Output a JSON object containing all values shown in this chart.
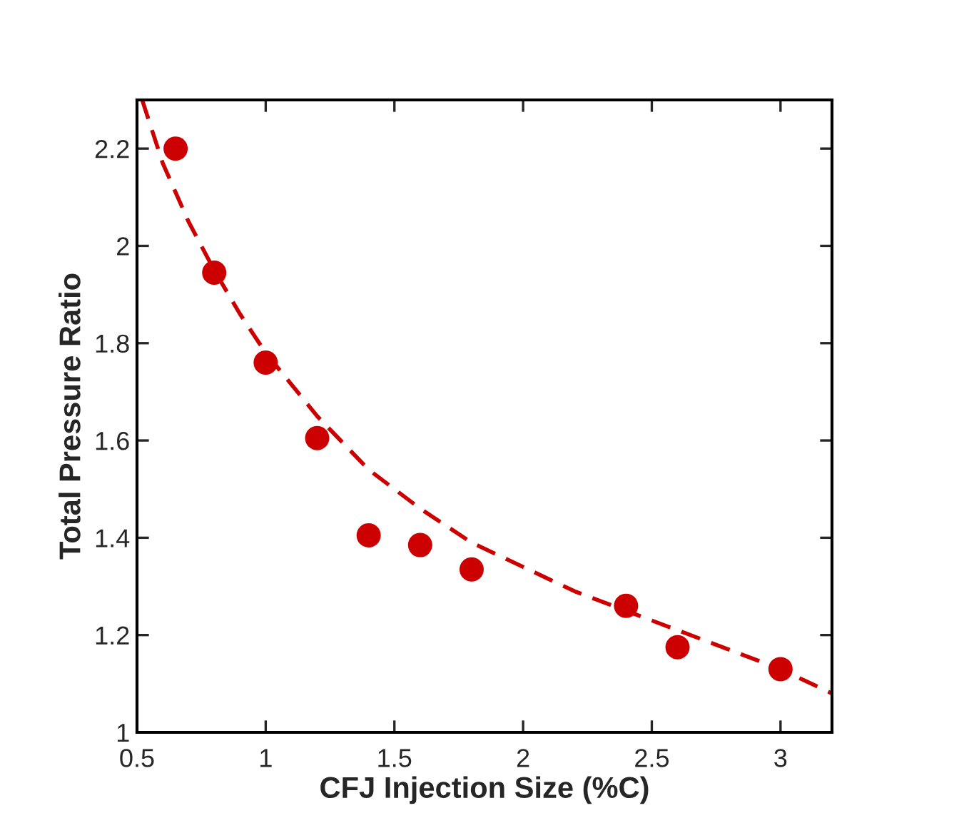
{
  "chart_data": {
    "type": "scatter",
    "xlabel": "CFJ Injection Size (%C)",
    "ylabel": "Total Pressure Ratio",
    "xlim": [
      0.5,
      3.2
    ],
    "ylim": [
      1,
      2.3
    ],
    "xticks": [
      0.5,
      1,
      1.5,
      2,
      2.5,
      3
    ],
    "yticks": [
      1,
      1.2,
      1.4,
      1.6,
      1.8,
      2,
      2.2
    ],
    "grid": false,
    "series": [
      {
        "color": "#cc0000",
        "marker": "circle",
        "x": [
          0.65,
          0.8,
          1.0,
          1.2,
          1.4,
          1.6,
          1.8,
          2.4,
          2.6,
          3.0
        ],
        "values": [
          2.2,
          1.945,
          1.76,
          1.605,
          1.405,
          1.385,
          1.335,
          1.26,
          1.175,
          1.13
        ]
      },
      {
        "type": "line",
        "color": "#cc0000",
        "line_style": "dashed",
        "marker": "none",
        "x": [
          0.52,
          0.6,
          0.7,
          0.8,
          0.9,
          1.0,
          1.2,
          1.4,
          1.6,
          1.8,
          2.0,
          2.2,
          2.4,
          2.6,
          2.8,
          3.0,
          3.2
        ],
        "values": [
          2.3,
          2.17,
          2.05,
          1.95,
          1.86,
          1.78,
          1.65,
          1.54,
          1.46,
          1.39,
          1.34,
          1.29,
          1.25,
          1.21,
          1.17,
          1.13,
          1.08
        ]
      }
    ]
  }
}
